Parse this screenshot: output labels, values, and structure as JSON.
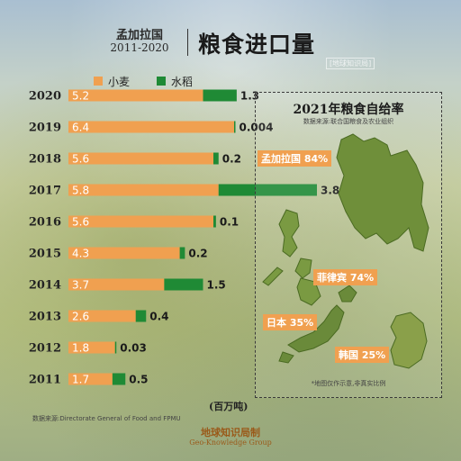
{
  "header": {
    "country": "孟加拉国",
    "years": "2011-2020",
    "title": "粮食进口量"
  },
  "legend": {
    "wheat": "小麦",
    "rice": "水稻"
  },
  "colors": {
    "wheat": "#f0a050",
    "rice": "#1f8a35",
    "tag": "#f0a050"
  },
  "chart_data": {
    "type": "bar",
    "orientation": "horizontal",
    "stacked": true,
    "categories": [
      "2020",
      "2019",
      "2018",
      "2017",
      "2016",
      "2015",
      "2014",
      "2013",
      "2012",
      "2011"
    ],
    "series": [
      {
        "name": "小麦",
        "values": [
          5.2,
          6.4,
          5.6,
          5.8,
          5.6,
          4.3,
          3.7,
          2.6,
          1.8,
          1.7
        ]
      },
      {
        "name": "水稻",
        "values": [
          1.3,
          0.004,
          0.2,
          3.8,
          0.1,
          0.2,
          1.5,
          0.4,
          0.03,
          0.5
        ]
      }
    ],
    "series_labels": [
      [
        "5.2",
        "6.4",
        "5.6",
        "5.8",
        "5.6",
        "4.3",
        "3.7",
        "2.6",
        "1.8",
        "1.7"
      ],
      [
        "1.3",
        "0.004",
        "0.2",
        "3.8",
        "0.1",
        "0.2",
        "1.5",
        "0.4",
        "0.03",
        "0.5"
      ]
    ],
    "xlim": [
      0,
      9.6
    ],
    "unit": "(百万吨)",
    "legend_position": "top"
  },
  "inset": {
    "title": "2021年粮食自给率",
    "subtitle": "数据来源:联合国粮食及农业组织",
    "note": "*地图仅作示意,非真实比例",
    "countries": [
      {
        "name": "孟加拉国 84%",
        "color": "#6f8f3a"
      },
      {
        "name": "菲律宾 74%",
        "color": "#7a9a42"
      },
      {
        "name": "日本 35%",
        "color": "#6a8a3a"
      },
      {
        "name": "韩国 25%",
        "color": "#8aa04a"
      }
    ]
  },
  "source": "数据来源:Directorate General of Food and FPMU",
  "brand": "地球知识局制",
  "brand_en": "Geo-Knowledge Group",
  "watermark": "[地球知识局]"
}
